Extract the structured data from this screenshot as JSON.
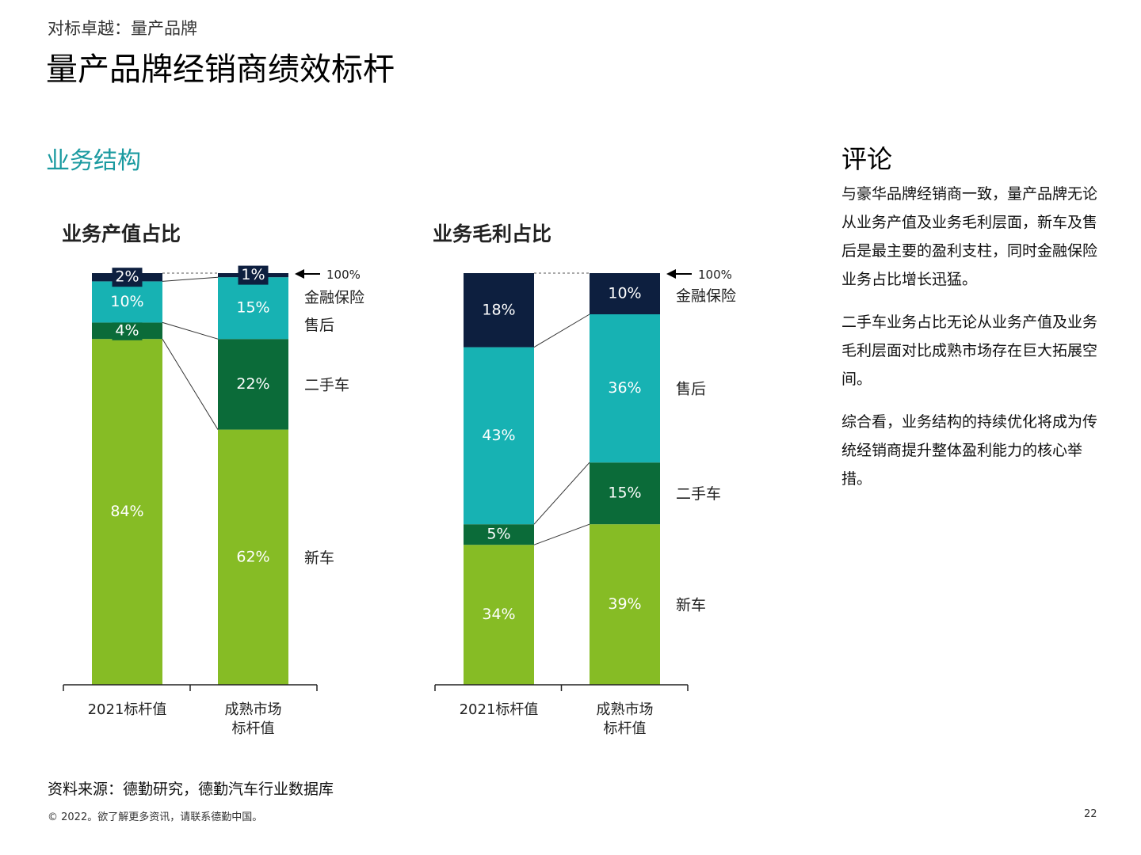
{
  "header": {
    "supertitle": "对标卓越：量产品牌",
    "title": "量产品牌经销商绩效标杆"
  },
  "section": {
    "title": "业务结构"
  },
  "colors": {
    "金融保险": "#0d1f3f",
    "售后": "#17b2b3",
    "二手车": "#0b6b39",
    "新车": "#86bc25",
    "section_title": "#1a9aa0"
  },
  "chart_data": [
    {
      "type": "bar",
      "stacked": true,
      "title": "业务产值占比",
      "categories": [
        "2021标杆值",
        "成熟市场\n标杆值"
      ],
      "category_lines": [
        [
          "2021标杆值"
        ],
        [
          "成熟市场",
          "标杆值"
        ]
      ],
      "series": [
        {
          "name": "新车",
          "values": [
            84,
            62
          ],
          "labels": [
            "84%",
            "62%"
          ]
        },
        {
          "name": "二手车",
          "values": [
            4,
            22
          ],
          "labels": [
            "4%",
            "22%"
          ]
        },
        {
          "name": "售后",
          "values": [
            10,
            15
          ],
          "labels": [
            "10%",
            "15%"
          ]
        },
        {
          "name": "金融保险",
          "values": [
            2,
            1
          ],
          "labels": [
            "2%",
            "1%"
          ]
        }
      ],
      "top_marker": "100%",
      "ylim": [
        0,
        100
      ]
    },
    {
      "type": "bar",
      "stacked": true,
      "title": "业务毛利占比",
      "categories": [
        "2021标杆值",
        "成熟市场\n标杆值"
      ],
      "category_lines": [
        [
          "2021标杆值"
        ],
        [
          "成熟市场",
          "标杆值"
        ]
      ],
      "series": [
        {
          "name": "新车",
          "values": [
            34,
            39
          ],
          "labels": [
            "34%",
            "39%"
          ]
        },
        {
          "name": "二手车",
          "values": [
            5,
            15
          ],
          "labels": [
            "5%",
            "15%"
          ]
        },
        {
          "name": "售后",
          "values": [
            43,
            36
          ],
          "labels": [
            "43%",
            "36%"
          ]
        },
        {
          "name": "金融保险",
          "values": [
            18,
            10
          ],
          "labels": [
            "18%",
            "10%"
          ]
        }
      ],
      "top_marker": "100%",
      "ylim": [
        0,
        100
      ]
    }
  ],
  "comment": {
    "title": "评论",
    "paragraphs": [
      "与豪华品牌经销商一致，量产品牌无论从业务产值及业务毛利层面，新车及售后是最主要的盈利支柱，同时金融保险业务占比增长迅猛。",
      "二手车业务占比无论从业务产值及业务毛利层面对比成熟市场存在巨大拓展空间。",
      "综合看，业务结构的持续优化将成为传统经销商提升整体盈利能力的核心举措。"
    ]
  },
  "footer": {
    "source": "资料来源：德勤研究，德勤汽车行业数据库",
    "copyright": "© 2022。欲了解更多资讯，请联系德勤中国。",
    "page_number": "22"
  }
}
